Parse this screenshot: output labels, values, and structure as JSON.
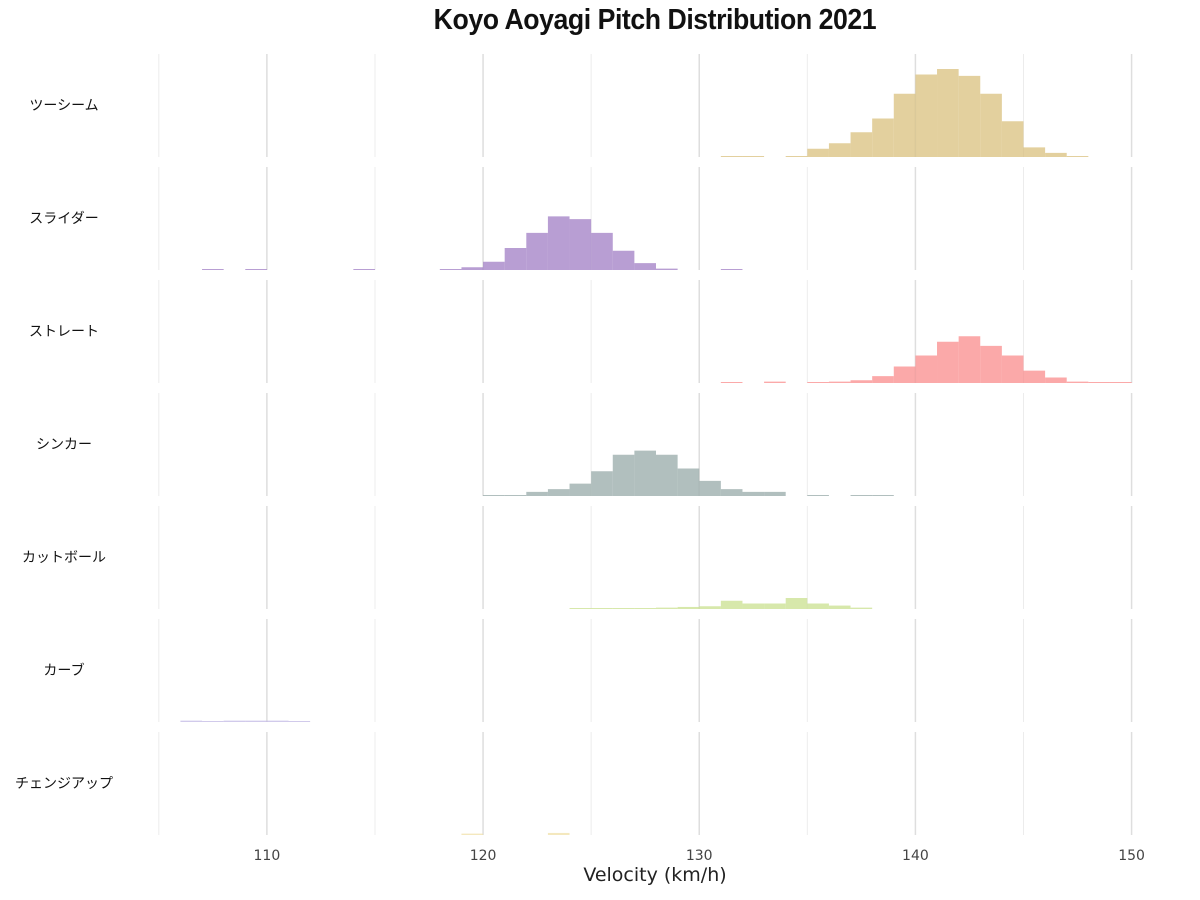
{
  "chart_data": {
    "type": "histogram",
    "title": "Koyo Aoyagi Pitch Distribution 2021",
    "xlabel": "Velocity (km/h)",
    "ylabel": "",
    "xlim": [
      104.5,
      151.5
    ],
    "x_ticks": [
      110,
      120,
      130,
      140,
      150
    ],
    "grid": true,
    "facets": "rows",
    "bin_width": 1,
    "series": [
      {
        "name": "ツーシーム",
        "color": "#d9c07e",
        "bins": [
          [
            131,
            0.01
          ],
          [
            132,
            0.01
          ],
          [
            134,
            0.06
          ],
          [
            135,
            0.6
          ],
          [
            136,
            1.0
          ],
          [
            137,
            1.8
          ],
          [
            138,
            2.8
          ],
          [
            139,
            4.6
          ],
          [
            140,
            6.0
          ],
          [
            141,
            6.4
          ],
          [
            142,
            5.9
          ],
          [
            143,
            4.6
          ],
          [
            144,
            2.6
          ],
          [
            145,
            0.7
          ],
          [
            146,
            0.3
          ],
          [
            147,
            0.05
          ]
        ]
      },
      {
        "name": "スライダー",
        "color": "#a07ec4",
        "bins": [
          [
            107,
            0.03
          ],
          [
            109,
            0.03
          ],
          [
            114,
            0.03
          ],
          [
            118,
            0.03
          ],
          [
            119,
            0.2
          ],
          [
            120,
            0.6
          ],
          [
            121,
            1.6
          ],
          [
            122,
            2.7
          ],
          [
            123,
            3.9
          ],
          [
            124,
            3.7
          ],
          [
            125,
            2.7
          ],
          [
            126,
            1.4
          ],
          [
            127,
            0.5
          ],
          [
            128,
            0.1
          ],
          [
            131,
            0.03
          ]
        ]
      },
      {
        "name": "ストレート",
        "color": "#fa8c8c",
        "bins": [
          [
            131,
            0.05
          ],
          [
            133,
            0.1
          ],
          [
            135,
            0.05
          ],
          [
            136,
            0.1
          ],
          [
            137,
            0.2
          ],
          [
            138,
            0.5
          ],
          [
            139,
            1.2
          ],
          [
            140,
            2.0
          ],
          [
            141,
            3.0
          ],
          [
            142,
            3.4
          ],
          [
            143,
            2.7
          ],
          [
            144,
            2.0
          ],
          [
            145,
            0.9
          ],
          [
            146,
            0.4
          ],
          [
            147,
            0.1
          ],
          [
            148,
            0.05
          ],
          [
            149,
            0.03
          ]
        ]
      },
      {
        "name": "シンカー",
        "color": "#97aaa8",
        "bins": [
          [
            120,
            0.05
          ],
          [
            121,
            0.05
          ],
          [
            122,
            0.3
          ],
          [
            123,
            0.5
          ],
          [
            124,
            0.9
          ],
          [
            125,
            1.8
          ],
          [
            126,
            3.0
          ],
          [
            127,
            3.3
          ],
          [
            128,
            3.0
          ],
          [
            129,
            2.0
          ],
          [
            130,
            1.1
          ],
          [
            131,
            0.5
          ],
          [
            132,
            0.3
          ],
          [
            133,
            0.3
          ],
          [
            135,
            0.05
          ],
          [
            137,
            0.05
          ],
          [
            138,
            0.05
          ]
        ]
      },
      {
        "name": "カットボール",
        "color": "#c9e08f",
        "bins": [
          [
            124,
            0.02
          ],
          [
            125,
            0.03
          ],
          [
            126,
            0.03
          ],
          [
            127,
            0.05
          ],
          [
            128,
            0.1
          ],
          [
            129,
            0.15
          ],
          [
            130,
            0.2
          ],
          [
            131,
            0.6
          ],
          [
            132,
            0.4
          ],
          [
            133,
            0.4
          ],
          [
            134,
            0.8
          ],
          [
            135,
            0.4
          ],
          [
            136,
            0.25
          ],
          [
            137,
            0.1
          ]
        ]
      },
      {
        "name": "カーブ",
        "color": "#c2b8e4",
        "bins": [
          [
            106,
            0.1
          ],
          [
            107,
            0.06
          ],
          [
            108,
            0.1
          ],
          [
            109,
            0.1
          ],
          [
            110,
            0.1
          ],
          [
            111,
            0.06
          ]
        ]
      },
      {
        "name": "チェンジアップ",
        "color": "#f0e0a8",
        "bins": [
          [
            119,
            0.1
          ],
          [
            123,
            0.15
          ]
        ]
      }
    ]
  }
}
